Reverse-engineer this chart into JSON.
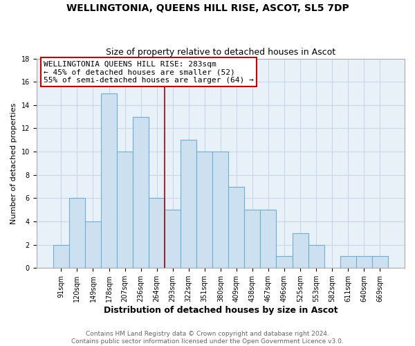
{
  "title": "WELLINGTONIA, QUEENS HILL RISE, ASCOT, SL5 7DP",
  "subtitle": "Size of property relative to detached houses in Ascot",
  "xlabel": "Distribution of detached houses by size in Ascot",
  "ylabel": "Number of detached properties",
  "bar_labels": [
    "91sqm",
    "120sqm",
    "149sqm",
    "178sqm",
    "207sqm",
    "236sqm",
    "264sqm",
    "293sqm",
    "322sqm",
    "351sqm",
    "380sqm",
    "409sqm",
    "438sqm",
    "467sqm",
    "496sqm",
    "525sqm",
    "553sqm",
    "582sqm",
    "611sqm",
    "640sqm",
    "669sqm"
  ],
  "bar_values": [
    2,
    6,
    4,
    15,
    10,
    13,
    6,
    5,
    11,
    10,
    10,
    7,
    5,
    5,
    1,
    3,
    2,
    0,
    1,
    1,
    1
  ],
  "bar_color": "#cce0f0",
  "bar_edge_color": "#6baed6",
  "vline_color": "#aa0000",
  "vline_x": 6.5,
  "annotation_text": "WELLINGTONIA QUEENS HILL RISE: 283sqm\n← 45% of detached houses are smaller (52)\n55% of semi-detached houses are larger (64) →",
  "annotation_box_color": "#ffffff",
  "annotation_box_edge": "#cc0000",
  "ylim": [
    0,
    18
  ],
  "yticks": [
    0,
    2,
    4,
    6,
    8,
    10,
    12,
    14,
    16,
    18
  ],
  "grid_color": "#c8d8e8",
  "plot_bg_color": "#e8f0f8",
  "background_color": "#ffffff",
  "footnote": "Contains HM Land Registry data © Crown copyright and database right 2024.\nContains public sector information licensed under the Open Government Licence v3.0.",
  "title_fontsize": 10,
  "subtitle_fontsize": 9,
  "xlabel_fontsize": 9,
  "ylabel_fontsize": 8,
  "tick_fontsize": 7,
  "annotation_fontsize": 8,
  "footnote_fontsize": 6.5
}
